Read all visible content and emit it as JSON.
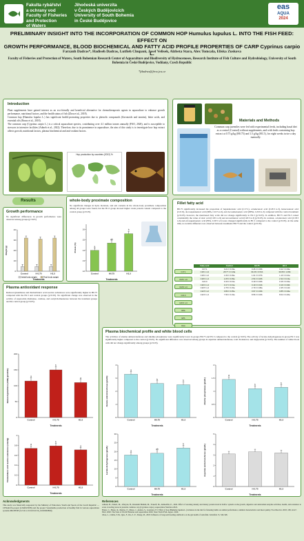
{
  "header": {
    "faculty_lines": [
      "Fakulta rybářství",
      "a ochrany vod",
      "Faculty of Fisheries",
      "and Protection",
      "of Waters"
    ],
    "university_lines": [
      "Jihočeská univerzita",
      "v Českých Budějovicích",
      "University of South Bohemia",
      "in České Budějovice"
    ],
    "conf_logo_top": "eas",
    "conf_logo_mid": "AQUA",
    "conf_logo_year": "2024"
  },
  "title": {
    "line1": "PRELIMINARY INSIGHT INTO THE INCORPORATION OF COMMON HOP Humulus lupulus L. INTO THE FISH FEED: EFFECT ON",
    "line2": "GROWTH PERFORMANCE, BLOOD BIOCHEMICAL AND FATTY ACID PROFILE PROPERTIES OF CARP Cyprinus carpio L."
  },
  "authors": "Farzanh Dadras*, Hadiseh Dadras, Lutfieh Chupani, Josef Velisek, Alzbeta Stara, Alex Tomcala, Eliska Zuskova",
  "affiliation": "Faculty of Fisheries and Protection of Waters, South Bohemian Research Center of Aquaculture and Biodiversity of Hydrocenoses, Research Institute of Fish Culture and Hydrobiology, University of South Bohemia in České Budějovice, Vodňany, Czech Republic",
  "email": "*fdadras@frov.jcu.cz",
  "intro": {
    "title": "Introduction",
    "p1": "Plant supplements have gained interest as an eco-friendly and beneficial alternative for chemotherapeutic agents in aquaculture to enhance growth performance, nutritional factors, and the health status of fish (Zhou et al., 2018).",
    "p2": "Common hop (Humulus lupulus L.) has significant health-promoting properties due to phenolic compounds (flavonoids and tannins), bitter acids, and essential oils (Bruno et al., 2018).",
    "p3": "The common carp (Cyprinus carpio L.) is a critical aquaculture species, contributing over 4.1 million tonnes annually (FAO, 2020), and is susceptible to stressors in intensive facilities (Adineh et al., 2022). Therefore, due to its prominence in aquaculture, the aim of this study is to investigate how hop extract affects growth, nutritional factors, plasma biochemical and anti-oxidant factors.",
    "map_caption": "Hop production by countries (2022) %"
  },
  "methods": {
    "title": "Materials and Methods",
    "text": "Common carp juveniles were fed with experimental feeds, including basal diet as a control (Control) without supplements, and with feeds containing hop extract at 0.75 g/kg (H0.75) and 1.5 g/kg (H1.5), for eight weeks twice a day manually."
  },
  "results_label": "Results",
  "growth": {
    "title": "Growth performance",
    "text": "No significant differences in growth performance were observed among groups (p>0.05)",
    "legend": [
      "Initial body weight",
      "Final body weight"
    ]
  },
  "proximate": {
    "title": "whole-body proximate composition",
    "text": "No significant changes in lipid, moisture, and ash contents in the whole-body proximate composition among all groups were found, but the H1.5 group showed higher crude protein content compared to the control group (p<0.05)."
  },
  "fatty": {
    "title": "Fillet fatty acid",
    "text": "H0.75 significantly increased the proportion of heptadecanoic acid (C17:1), octadecanoic acid (C18:3 n-3), hexacosanoic acid (C21:0), docosapentaenoic acid (DPA, C22:5 n-6), and docosahexaenoic acid (DHA, C22:6 n-3) compared with the control treatment (p<0.05). however, the mentioned fatty acids did not change significantly in H1.5 (p>0.05). In addition, H0.75 and H1.5 raised considerably the value of oleic acid (C18:1 n-9) and eicosatrienoic acid (C20:3 n-3) (p<0.05). In contrast, octadecanoic acid (C18:3 n-6) and eicosapentaenoic acid (EPA, C20:5 n-3) were changed significantly in H1.5 compared to the control (p<0.05). At the same time, no notable difference was observed between treatments H0.75 and the control (p>0.05).",
    "table_headers": [
      "Fatty acid",
      "Control",
      "H0.75",
      "H1.5"
    ],
    "rows": [
      [
        "C17:1",
        "0.21 ± 0.03a",
        "0.26 ± 0.03b",
        "0.22 ± 0.02a"
      ],
      [
        "C18:1 n-9",
        "28.77 ± 0.19a",
        "30.26 ± 0.51b",
        "30.08 ± 1.09b"
      ],
      [
        "C18:2 n-6",
        "1.09 ± 0.09a",
        "1.01 ± 0.07b",
        "1.10 ± 0.10a"
      ],
      [
        "C18:3 n-3",
        "2.25 ± 0.09a",
        "2.54 ± 0.18b",
        "2.34 ± 0.13a"
      ],
      [
        "C21:0",
        "0.16 ± 0.01a",
        "0.19 ± 0.02b",
        "0.16 ± 0.01a"
      ],
      [
        "C20:3 n-3",
        "0.17 ± 0.01a",
        "0.19 ± 0.01b",
        "0.19 ± 0.02b"
      ],
      [
        "C20:5 n-3",
        "2.78 ± 0.15a",
        "2.79 ± 0.08a",
        "2.45 ± 0.12b"
      ],
      [
        "C22:5 n-6",
        "0.89 ± 0.05a",
        "0.97 ± 0.03b",
        "0.85 ± 0.04a"
      ],
      [
        "C22:6 n-3",
        "7.96 ± 0.19a",
        "8.56 ± 0.32b",
        "8.04 ± 0.20a"
      ]
    ],
    "side_labels": [
      "C17:1",
      "C18:1 n-9",
      "C18:3 n-3",
      "C21:0",
      "C20:3 n-3",
      "DPA",
      "EPA",
      "DHA"
    ]
  },
  "antiox": {
    "title": "Plasma antioxidant response",
    "text": "Reduced glutathione and thiobarbituric acid reactive substances were significantly higher in H0.75 compared with the H1.5 and control groups (p<0.05). No significant change was observed in the activity of superoxide dismutase, catalase, and acetylcholinesterase between the treatment groups and the control group (p>0.05)."
  },
  "biochem": {
    "title": "Plasma biochemical profile and white blood cells",
    "text": "The activities of alanine aminotransferase and alkaline phosphatase were significantly lower in groups H0.75 and H1.5 compared to the control (p<0.05). The activity of lactate dehydrogenase in group H1.5 was significantly higher compared to the control (p<0.05). No significant difference was observed among groups in aspartate aminotransferase, total cholesterol, and triglyceride (p>0.05). The number of white blood cells did not change significantly among groups (p>0.05)."
  },
  "ack": {
    "title": "Acknowledgments",
    "text": "This study was financially supported by the Ministry of Education, Youth and Sports of the Czech Republic — CENAKVA project (LM2023038) and the project Sustainable production of healthy fish in various aquaculture systems PROFISH (CZ.02.1.01/0.0/0.0/16_019/0000869)."
  },
  "refs": {
    "title": "References",
    "items": [
      "Adineh, H., Naderi, M., Jafaryan, H., Khademi Hamidi, M., Yousefi, M., Ahmadifar, E., 2022. Effect of stocking density and dietary protein level in biofloc system on the growth, digestive and antioxidant enzyme activities, health, and resistance to acute crowding stress in juvenile common carp (Cyprinus carpio). Aquaculture Nutrition 2022.",
      "Bruno, C., Bruno, R., Merino, E., Mateo, J., Andres, S., Gonzalez, F.J. Effect of hop (Humulus lupulus L.) inclusion in the diet for fattening lambs on animal performance, ruminal characteristics and meat quality. Food Res Int. 2018, 108, 42-47.",
      "FAO. 2020. The State of World Fisheries and Aquaculture 2020. State World Fish. Aquac. 2020.",
      "Zhou, L., Limbu, S.M., Qiao, F., Du, Z.-Y., Zhang, M., 2018. Influence of long-term feeding antibiotics on the gut health of zebrafish. Zebrafish 15, 340-348."
    ]
  },
  "colors": {
    "bar_red": "#c0201a",
    "bar_green": "#86c450",
    "bar_cyan": "#a4e3e8",
    "bar_gray": "#dcdcdc",
    "bar_tan": "#d6c48c",
    "panel_border": "#5b9b45",
    "header_green": "#3b7d2f"
  },
  "chart_data": [
    {
      "id": "growth",
      "type": "bar",
      "categories": [
        "Control",
        "H 0.75",
        "H1.5"
      ],
      "series": [
        {
          "name": "Initial body weight",
          "values": [
            4.5,
            4.5,
            4.5
          ]
        },
        {
          "name": "Final body weight",
          "values": [
            32,
            31,
            32
          ]
        }
      ],
      "xlabel": "Treatments",
      "ylabel": "Weight (g)",
      "ylim": [
        0,
        40
      ],
      "yticks": [
        0,
        10,
        20,
        30,
        40
      ],
      "colors": [
        "#dcdcdc",
        "#d6c48c"
      ]
    },
    {
      "id": "protein",
      "type": "bar",
      "categories": [
        "Control",
        "H0.75",
        "H1.5"
      ],
      "values": [
        14.0,
        14.7,
        15.6
      ],
      "letters": [
        "a",
        "ab",
        "b"
      ],
      "xlabel": "Treatments",
      "ylabel": "Protein (%)",
      "ylim": [
        12,
        16.5
      ],
      "yticks": [
        12,
        13,
        14,
        15,
        16
      ],
      "colors": [
        "#86c450"
      ]
    },
    {
      "id": "gsh",
      "type": "bar",
      "categories": [
        "Control",
        "H 0.75",
        "H1.5"
      ],
      "values": [
        115,
        150,
        110
      ],
      "letters": [
        "a",
        "b",
        "a"
      ],
      "xlabel": "Treatments",
      "ylabel": "Reduced glutathione (GSH) (µmol/mL)",
      "ylim": [
        0,
        200
      ],
      "yticks": [
        0,
        50,
        100,
        150,
        200
      ],
      "colors": [
        "#c0201a"
      ]
    },
    {
      "id": "tbars",
      "type": "bar",
      "categories": [
        "Control",
        "H 0.75",
        "H1.5"
      ],
      "values": [
        0.74,
        0.79,
        0.71
      ],
      "letters": [
        "a",
        "b",
        "a"
      ],
      "xlabel": "Treatments",
      "ylabel": "Thiobarbituric acid reactive substances (nmol/g)",
      "ylim": [
        0,
        1.0
      ],
      "yticks": [
        0,
        0.2,
        0.4,
        0.6,
        0.8,
        1.0
      ],
      "colors": [
        "#c0201a"
      ]
    },
    {
      "id": "alt",
      "type": "bar",
      "categories": [
        "Control",
        "H0.75",
        "H1.5"
      ],
      "values": [
        3.3,
        2.6,
        2.5
      ],
      "letters": [
        "a",
        "b",
        "b"
      ],
      "xlabel": "Treatments",
      "ylabel": "Alanine aminotransferase (µkat/L)",
      "ylim": [
        0,
        4
      ],
      "yticks": [
        0,
        1,
        2,
        3,
        4
      ],
      "colors": [
        "#a4e3e8"
      ]
    },
    {
      "id": "alp",
      "type": "bar",
      "categories": [
        "Control",
        "H 0.75",
        "H1.5"
      ],
      "values": [
        1.45,
        1.1,
        1.15
      ],
      "letters": [
        "a",
        "b",
        "b"
      ],
      "xlabel": "Treatments",
      "ylabel": "Alkaline phosphatase (µkat/L)",
      "ylim": [
        0,
        2
      ],
      "yticks": [
        0,
        0.5,
        1.0,
        1.5,
        2.0
      ],
      "colors": [
        "#a4e3e8"
      ]
    },
    {
      "id": "ldh",
      "type": "bar",
      "categories": [
        "Control",
        "H0.75",
        "H1.5"
      ],
      "values": [
        18,
        19,
        22
      ],
      "letters": [
        "a",
        "ab",
        "b"
      ],
      "xlabel": "Treatments",
      "ylabel": "Lactate dehydrogenase (µkat/L)",
      "ylim": [
        0,
        30
      ],
      "yticks": [
        0,
        5,
        10,
        15,
        20,
        25,
        30
      ],
      "colors": [
        "#a4e3e8"
      ]
    },
    {
      "id": "ast",
      "type": "bar",
      "categories": [
        "Control",
        "H 0.75",
        "H1.5"
      ],
      "values": [
        3.1,
        3.3,
        3.2
      ],
      "letters": [
        "",
        "",
        ""
      ],
      "xlabel": "Treatments",
      "ylabel": "Aspartate aminotransferase (µkat/L)",
      "ylim": [
        0,
        5
      ],
      "yticks": [
        0,
        1,
        2,
        3,
        4,
        5
      ],
      "colors": [
        "#dcdcdc"
      ]
    }
  ]
}
